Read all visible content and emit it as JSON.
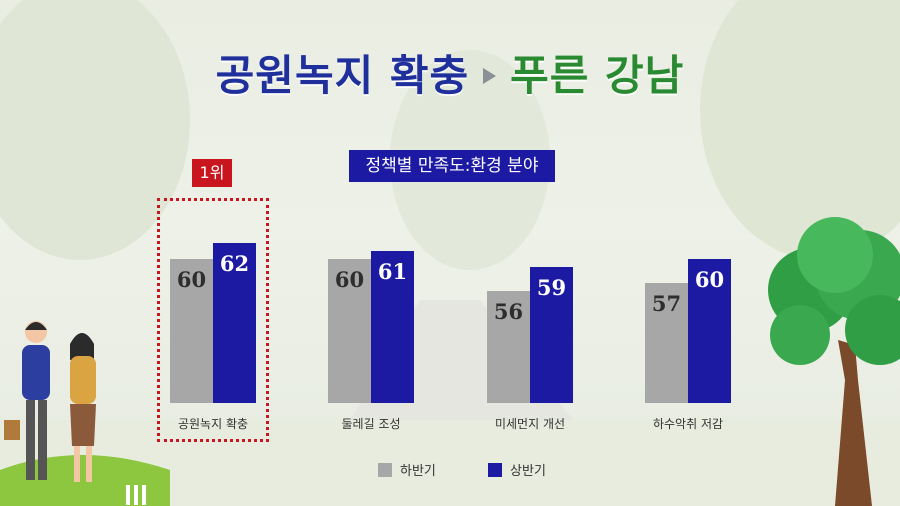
{
  "header": {
    "title_left": "공원녹지 확충",
    "title_right": "푸른 강남",
    "arrow_icon": "right-triangle-icon"
  },
  "badge": {
    "rank_label": "1위"
  },
  "colors": {
    "first_half": "#a7a7a7",
    "second_half": "#1c1aa3",
    "highlight": "#c8151e"
  },
  "chart_data": {
    "type": "bar",
    "title": "정책별 만족도:환경 분야",
    "categories": [
      "공원녹지 확충",
      "둘레길 조성",
      "미세먼지 개선",
      "하수악취 저감"
    ],
    "series": [
      {
        "name": "하반기",
        "values": [
          60,
          60,
          56,
          57
        ]
      },
      {
        "name": "상반기",
        "values": [
          62,
          61,
          59,
          60
        ]
      }
    ],
    "highlighted_category": "공원녹지 확충",
    "legend_position": "bottom",
    "grid": false
  }
}
